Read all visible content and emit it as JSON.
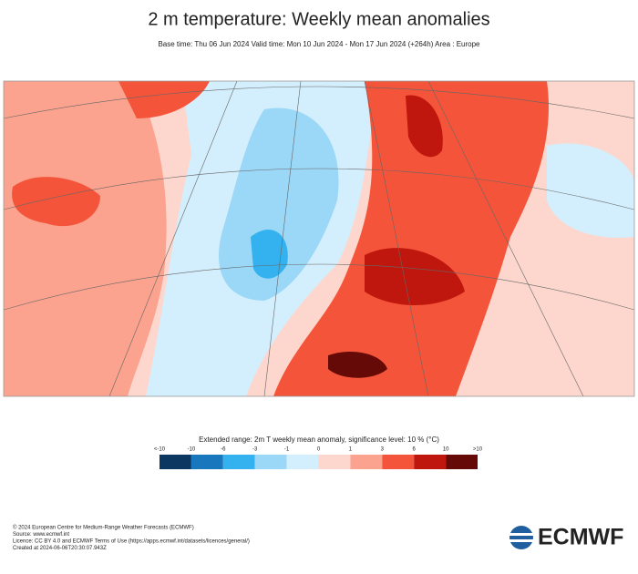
{
  "header": {
    "title": "2 m temperature: Weekly mean anomalies",
    "subtitle": "Base time: Thu 06 Jun 2024 Valid time: Mon 10 Jun 2024 - Mon 17 Jun 2024 (+264h) Area : Europe"
  },
  "colorbar": {
    "title": "Extended range: 2m T weekly mean anomaly, significance level: 10 % (°C)",
    "labels": [
      "<-10",
      "-10",
      "-6",
      "-3",
      "-1",
      "0",
      "1",
      "3",
      "6",
      "10",
      ">10"
    ],
    "colors": [
      "#0b3760",
      "#1877bd",
      "#34b2ef",
      "#9bd7f6",
      "#d3eefc",
      "#fdd7ce",
      "#fca38f",
      "#f4553a",
      "#bf170d",
      "#650a06"
    ]
  },
  "footer": {
    "lines": [
      "© 2024 European Centre for Medium-Range Weather Forecasts (ECMWF)",
      "Source: www.ecmwf.int",
      "Licence: CC BY 4.0 and ECMWF Terms of Use (https://apps.ecmwf.int/datasets/licences/general/)",
      "Created at 2024-06-06T20:30:07.943Z"
    ],
    "logo": "ECMWF"
  }
}
